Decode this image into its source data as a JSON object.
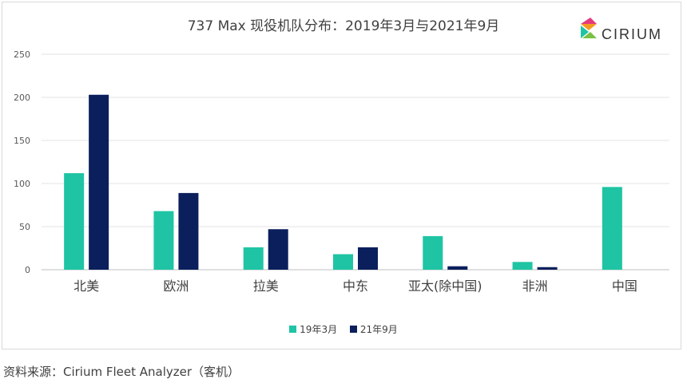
{
  "chart_data": {
    "type": "bar",
    "title": "737 Max 现役机队分布：2019年3月与2021年9月",
    "categories": [
      "北美",
      "欧洲",
      "拉美",
      "中东",
      "亚太(除中国)",
      "非洲",
      "中国"
    ],
    "series": [
      {
        "name": "19年3月",
        "color": "#1fc4a4",
        "values": [
          112,
          68,
          26,
          18,
          39,
          9,
          96
        ]
      },
      {
        "name": "21年9月",
        "color": "#0b1f5c",
        "values": [
          203,
          89,
          47,
          26,
          4,
          3,
          0
        ]
      }
    ],
    "yticks": [
      "0",
      "50",
      "100",
      "150",
      "200",
      "250"
    ],
    "ylim": [
      0,
      250
    ],
    "grid": true,
    "legend": "bottom"
  },
  "logo": {
    "text": "CIRIUM"
  },
  "source": "资料来源：Cirium Fleet Analyzer（客机）"
}
